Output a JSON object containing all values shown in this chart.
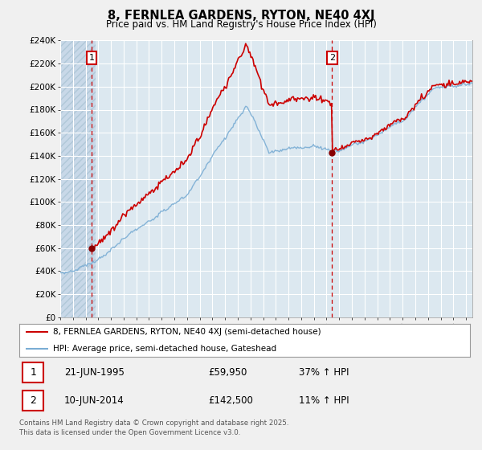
{
  "title": "8, FERNLEA GARDENS, RYTON, NE40 4XJ",
  "subtitle": "Price paid vs. HM Land Registry's House Price Index (HPI)",
  "ylim": [
    0,
    240000
  ],
  "yticks": [
    0,
    20000,
    40000,
    60000,
    80000,
    100000,
    120000,
    140000,
    160000,
    180000,
    200000,
    220000,
    240000
  ],
  "ytick_labels": [
    "£0",
    "£20K",
    "£40K",
    "£60K",
    "£80K",
    "£100K",
    "£120K",
    "£140K",
    "£160K",
    "£180K",
    "£200K",
    "£220K",
    "£240K"
  ],
  "xmin": 1993.0,
  "xmax": 2025.5,
  "sale1_date": 1995.47,
  "sale1_price": 59950,
  "sale1_label": "1",
  "sale2_date": 2014.44,
  "sale2_price": 142500,
  "sale2_label": "2",
  "price_color": "#cc0000",
  "hpi_color": "#7aadd4",
  "marker_color": "#880000",
  "vline_color": "#cc0000",
  "annotation_box_color": "#cc0000",
  "plot_bg_color": "#dce8f0",
  "hatch_color": "#c8d8e8",
  "grid_color": "#ffffff",
  "legend_label_price": "8, FERNLEA GARDENS, RYTON, NE40 4XJ (semi-detached house)",
  "legend_label_hpi": "HPI: Average price, semi-detached house, Gateshead",
  "table_row1": [
    "1",
    "21-JUN-1995",
    "£59,950",
    "37% ↑ HPI"
  ],
  "table_row2": [
    "2",
    "10-JUN-2014",
    "£142,500",
    "11% ↑ HPI"
  ],
  "footnote": "Contains HM Land Registry data © Crown copyright and database right 2025.\nThis data is licensed under the Open Government Licence v3.0.",
  "background_color": "#f0f0f0"
}
